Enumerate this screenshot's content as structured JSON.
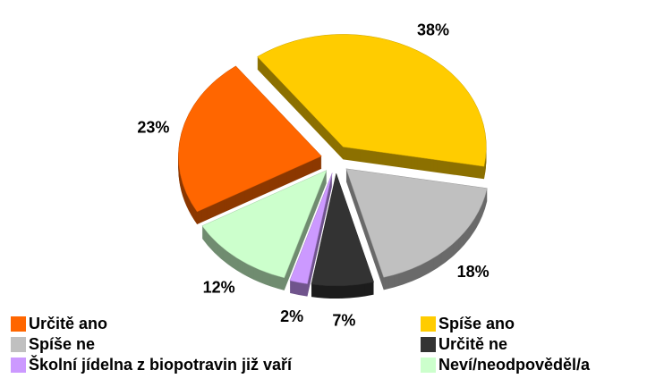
{
  "chart_data": {
    "type": "pie",
    "categories": [
      "Určitě ano",
      "Spíše ano",
      "Spíše ne",
      "Určitě ne",
      "Školní jídelna z biopotravin již vaří",
      "Neví/neodpověděl/a"
    ],
    "values": [
      23,
      38,
      18,
      7,
      2,
      12
    ],
    "value_labels": [
      "23%",
      "38%",
      "18%",
      "7%",
      "2%",
      "12%"
    ],
    "colors": [
      "#ff6600",
      "#ffcc00",
      "#c0c0c0",
      "#333333",
      "#cc99ff",
      "#ccffcc"
    ]
  }
}
